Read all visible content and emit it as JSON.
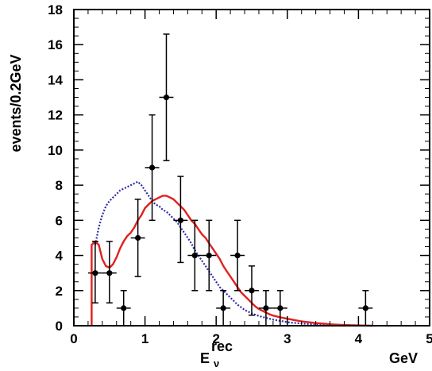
{
  "chart_data": {
    "type": "scatter",
    "ylabel": "events/0.2GeV",
    "xlabel_main": "E",
    "xlabel_sub": "ν",
    "xlabel_sup": "rec",
    "xunit": "GeV",
    "xlim": [
      0,
      5
    ],
    "ylim": [
      0,
      18
    ],
    "x_ticks": [
      0,
      1,
      2,
      3,
      4,
      5
    ],
    "y_ticks": [
      0,
      2,
      4,
      6,
      8,
      10,
      12,
      14,
      16,
      18
    ],
    "grid": false,
    "legend": "none",
    "colors": {
      "data": "#000000",
      "solid_line": "#e0201e",
      "dotted_line": "#2a2aa8"
    },
    "points": [
      {
        "x": 0.3,
        "y": 3,
        "xerr": 0.1,
        "yerr_low": 1.7,
        "yerr_high": 1.8
      },
      {
        "x": 0.5,
        "y": 3,
        "xerr": 0.1,
        "yerr_low": 1.7,
        "yerr_high": 1.8
      },
      {
        "x": 0.7,
        "y": 1,
        "xerr": 0.1,
        "yerr_low": 1.0,
        "yerr_high": 1.0
      },
      {
        "x": 0.9,
        "y": 5,
        "xerr": 0.1,
        "yerr_low": 2.2,
        "yerr_high": 2.2
      },
      {
        "x": 1.1,
        "y": 9,
        "xerr": 0.1,
        "yerr_low": 3.0,
        "yerr_high": 3.0
      },
      {
        "x": 1.3,
        "y": 13,
        "xerr": 0.1,
        "yerr_low": 3.6,
        "yerr_high": 3.6
      },
      {
        "x": 1.5,
        "y": 6,
        "xerr": 0.1,
        "yerr_low": 2.4,
        "yerr_high": 2.5
      },
      {
        "x": 1.7,
        "y": 4,
        "xerr": 0.1,
        "yerr_low": 2.0,
        "yerr_high": 2.0
      },
      {
        "x": 1.9,
        "y": 4,
        "xerr": 0.1,
        "yerr_low": 2.0,
        "yerr_high": 2.0
      },
      {
        "x": 2.1,
        "y": 1,
        "xerr": 0.1,
        "yerr_low": 1.0,
        "yerr_high": 1.0
      },
      {
        "x": 2.3,
        "y": 4,
        "xerr": 0.1,
        "yerr_low": 2.0,
        "yerr_high": 2.0
      },
      {
        "x": 2.5,
        "y": 2,
        "xerr": 0.1,
        "yerr_low": 1.4,
        "yerr_high": 1.4
      },
      {
        "x": 2.7,
        "y": 1,
        "xerr": 0.1,
        "yerr_low": 1.0,
        "yerr_high": 1.0
      },
      {
        "x": 2.9,
        "y": 1,
        "xerr": 0.1,
        "yerr_low": 1.0,
        "yerr_high": 1.0
      },
      {
        "x": 4.1,
        "y": 1,
        "xerr": 0.1,
        "yerr_low": 1.0,
        "yerr_high": 1.0
      }
    ],
    "solid_line": [
      [
        0.25,
        0
      ],
      [
        0.25,
        4.6
      ],
      [
        0.3,
        4.8
      ],
      [
        0.35,
        4.6
      ],
      [
        0.4,
        3.8
      ],
      [
        0.45,
        3.4
      ],
      [
        0.5,
        3.3
      ],
      [
        0.55,
        3.5
      ],
      [
        0.6,
        3.9
      ],
      [
        0.65,
        4.4
      ],
      [
        0.7,
        4.8
      ],
      [
        0.75,
        5.1
      ],
      [
        0.8,
        5.3
      ],
      [
        0.85,
        5.6
      ],
      [
        0.9,
        6.0
      ],
      [
        0.95,
        6.3
      ],
      [
        1.0,
        6.7
      ],
      [
        1.05,
        6.9
      ],
      [
        1.1,
        7.1
      ],
      [
        1.15,
        7.2
      ],
      [
        1.2,
        7.3
      ],
      [
        1.25,
        7.4
      ],
      [
        1.3,
        7.4
      ],
      [
        1.35,
        7.3
      ],
      [
        1.4,
        7.2
      ],
      [
        1.45,
        7.0
      ],
      [
        1.5,
        6.8
      ],
      [
        1.55,
        6.6
      ],
      [
        1.6,
        6.3
      ],
      [
        1.65,
        6.0
      ],
      [
        1.7,
        5.8
      ],
      [
        1.75,
        5.5
      ],
      [
        1.8,
        5.2
      ],
      [
        1.85,
        5.0
      ],
      [
        1.9,
        4.7
      ],
      [
        1.95,
        4.4
      ],
      [
        2.0,
        4.1
      ],
      [
        2.05,
        3.8
      ],
      [
        2.1,
        3.4
      ],
      [
        2.15,
        3.1
      ],
      [
        2.2,
        2.8
      ],
      [
        2.25,
        2.5
      ],
      [
        2.3,
        2.2
      ],
      [
        2.35,
        1.9
      ],
      [
        2.4,
        1.7
      ],
      [
        2.45,
        1.5
      ],
      [
        2.5,
        1.3
      ],
      [
        2.55,
        1.1
      ],
      [
        2.6,
        0.95
      ],
      [
        2.65,
        0.85
      ],
      [
        2.7,
        0.75
      ],
      [
        2.75,
        0.65
      ],
      [
        2.8,
        0.58
      ],
      [
        2.9,
        0.48
      ],
      [
        3.0,
        0.4
      ],
      [
        3.1,
        0.32
      ],
      [
        3.2,
        0.25
      ],
      [
        3.3,
        0.2
      ],
      [
        3.4,
        0.15
      ],
      [
        3.5,
        0.12
      ],
      [
        3.6,
        0.08
      ],
      [
        3.7,
        0.06
      ],
      [
        3.8,
        0.04
      ],
      [
        3.9,
        0.03
      ],
      [
        4.0,
        0.02
      ],
      [
        4.1,
        0.01
      ],
      [
        4.2,
        0
      ]
    ],
    "dotted_line": [
      [
        0.3,
        4.6
      ],
      [
        0.35,
        5.6
      ],
      [
        0.4,
        6.3
      ],
      [
        0.45,
        6.8
      ],
      [
        0.5,
        7.1
      ],
      [
        0.55,
        7.3
      ],
      [
        0.6,
        7.5
      ],
      [
        0.65,
        7.7
      ],
      [
        0.7,
        7.8
      ],
      [
        0.75,
        7.9
      ],
      [
        0.8,
        8.0
      ],
      [
        0.85,
        8.1
      ],
      [
        0.9,
        8.2
      ],
      [
        0.95,
        8.0
      ],
      [
        1.0,
        7.7
      ],
      [
        1.05,
        7.4
      ],
      [
        1.1,
        7.1
      ],
      [
        1.15,
        6.9
      ],
      [
        1.2,
        6.8
      ],
      [
        1.25,
        6.6
      ],
      [
        1.3,
        6.5
      ],
      [
        1.35,
        6.3
      ],
      [
        1.4,
        6.1
      ],
      [
        1.45,
        5.9
      ],
      [
        1.5,
        5.6
      ],
      [
        1.55,
        5.3
      ],
      [
        1.6,
        5.0
      ],
      [
        1.65,
        4.7
      ],
      [
        1.7,
        4.3
      ],
      [
        1.75,
        4.0
      ],
      [
        1.8,
        3.7
      ],
      [
        1.85,
        3.4
      ],
      [
        1.9,
        3.1
      ],
      [
        1.95,
        2.8
      ],
      [
        2.0,
        2.5
      ],
      [
        2.05,
        2.2
      ],
      [
        2.1,
        2.0
      ],
      [
        2.15,
        1.8
      ],
      [
        2.2,
        1.6
      ],
      [
        2.25,
        1.4
      ],
      [
        2.3,
        1.2
      ],
      [
        2.35,
        1.05
      ],
      [
        2.4,
        0.9
      ],
      [
        2.5,
        0.7
      ],
      [
        2.6,
        0.55
      ],
      [
        2.7,
        0.45
      ],
      [
        2.8,
        0.35
      ],
      [
        2.9,
        0.28
      ],
      [
        3.0,
        0.2
      ],
      [
        3.2,
        0.12
      ],
      [
        3.4,
        0.07
      ],
      [
        3.6,
        0.04
      ],
      [
        3.8,
        0.02
      ],
      [
        4.0,
        0.01
      ],
      [
        4.2,
        0
      ]
    ]
  }
}
